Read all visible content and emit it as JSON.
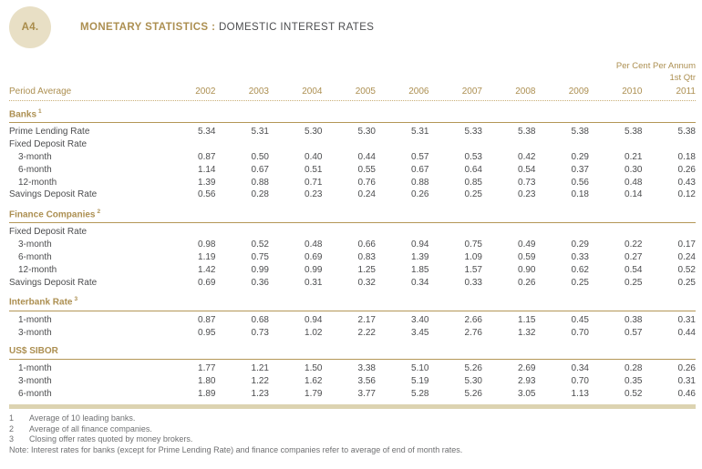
{
  "header": {
    "badge": "A4.",
    "title_bold": "MONETARY STATISTICS :",
    "title_regular": "DOMESTIC INTEREST RATES"
  },
  "meta": {
    "unit_line1": "Per Cent Per Annum",
    "unit_line2": "1st Qtr"
  },
  "columns": {
    "label": "Period Average",
    "years": [
      "2002",
      "2003",
      "2004",
      "2005",
      "2006",
      "2007",
      "2008",
      "2009",
      "2010",
      "2011"
    ]
  },
  "sections": [
    {
      "title": "Banks",
      "footnote_ref": "1",
      "rows": [
        {
          "label": "Prime Lending Rate",
          "indent": false,
          "values": [
            "5.34",
            "5.31",
            "5.30",
            "5.30",
            "5.31",
            "5.33",
            "5.38",
            "5.38",
            "5.38",
            "5.38"
          ]
        },
        {
          "label": "Fixed Deposit Rate",
          "indent": false,
          "values": []
        },
        {
          "label": "3-month",
          "indent": true,
          "values": [
            "0.87",
            "0.50",
            "0.40",
            "0.44",
            "0.57",
            "0.53",
            "0.42",
            "0.29",
            "0.21",
            "0.18"
          ]
        },
        {
          "label": "6-month",
          "indent": true,
          "values": [
            "1.14",
            "0.67",
            "0.51",
            "0.55",
            "0.67",
            "0.64",
            "0.54",
            "0.37",
            "0.30",
            "0.26"
          ]
        },
        {
          "label": "12-month",
          "indent": true,
          "values": [
            "1.39",
            "0.88",
            "0.71",
            "0.76",
            "0.88",
            "0.85",
            "0.73",
            "0.56",
            "0.48",
            "0.43"
          ]
        },
        {
          "label": "Savings Deposit Rate",
          "indent": false,
          "values": [
            "0.56",
            "0.28",
            "0.23",
            "0.24",
            "0.26",
            "0.25",
            "0.23",
            "0.18",
            "0.14",
            "0.12"
          ]
        }
      ]
    },
    {
      "title": "Finance Companies",
      "footnote_ref": "2",
      "rows": [
        {
          "label": "Fixed Deposit Rate",
          "indent": false,
          "values": []
        },
        {
          "label": "3-month",
          "indent": true,
          "values": [
            "0.98",
            "0.52",
            "0.48",
            "0.66",
            "0.94",
            "0.75",
            "0.49",
            "0.29",
            "0.22",
            "0.17"
          ]
        },
        {
          "label": "6-month",
          "indent": true,
          "values": [
            "1.19",
            "0.75",
            "0.69",
            "0.83",
            "1.39",
            "1.09",
            "0.59",
            "0.33",
            "0.27",
            "0.24"
          ]
        },
        {
          "label": "12-month",
          "indent": true,
          "values": [
            "1.42",
            "0.99",
            "0.99",
            "1.25",
            "1.85",
            "1.57",
            "0.90",
            "0.62",
            "0.54",
            "0.52"
          ]
        },
        {
          "label": "Savings Deposit Rate",
          "indent": false,
          "values": [
            "0.69",
            "0.36",
            "0.31",
            "0.32",
            "0.34",
            "0.33",
            "0.26",
            "0.25",
            "0.25",
            "0.25"
          ]
        }
      ]
    },
    {
      "title": "Interbank Rate",
      "footnote_ref": "3",
      "rows": [
        {
          "label": "1-month",
          "indent": true,
          "values": [
            "0.87",
            "0.68",
            "0.94",
            "2.17",
            "3.40",
            "2.66",
            "1.15",
            "0.45",
            "0.38",
            "0.31"
          ]
        },
        {
          "label": "3-month",
          "indent": true,
          "values": [
            "0.95",
            "0.73",
            "1.02",
            "2.22",
            "3.45",
            "2.76",
            "1.32",
            "0.70",
            "0.57",
            "0.44"
          ]
        }
      ]
    },
    {
      "title": "US$ SIBOR",
      "footnote_ref": "",
      "rows": [
        {
          "label": "1-month",
          "indent": true,
          "values": [
            "1.77",
            "1.21",
            "1.50",
            "3.38",
            "5.10",
            "5.26",
            "2.69",
            "0.34",
            "0.28",
            "0.26"
          ]
        },
        {
          "label": "3-month",
          "indent": true,
          "values": [
            "1.80",
            "1.22",
            "1.62",
            "3.56",
            "5.19",
            "5.30",
            "2.93",
            "0.70",
            "0.35",
            "0.31"
          ]
        },
        {
          "label": "6-month",
          "indent": true,
          "values": [
            "1.89",
            "1.23",
            "1.79",
            "3.77",
            "5.28",
            "5.26",
            "3.05",
            "1.13",
            "0.52",
            "0.46"
          ]
        }
      ]
    }
  ],
  "footnotes": [
    {
      "num": "1",
      "text": "Average of 10 leading banks."
    },
    {
      "num": "2",
      "text": "Average of all finance companies."
    },
    {
      "num": "3",
      "text": "Closing offer rates quoted by money brokers."
    }
  ],
  "note": "Note: Interest rates for banks (except for Prime Lending Rate) and finance companies refer to average of end of month rates.",
  "colors": {
    "gold_text": "#AC8F51",
    "section_rule": "#B49757",
    "dotted_rule": "#C9AF78",
    "badge_fill": "#E8DFC5",
    "bottom_bar": "#DCD3B1",
    "body_text": "#4C4D4F",
    "footnote_text": "#6F7072"
  }
}
